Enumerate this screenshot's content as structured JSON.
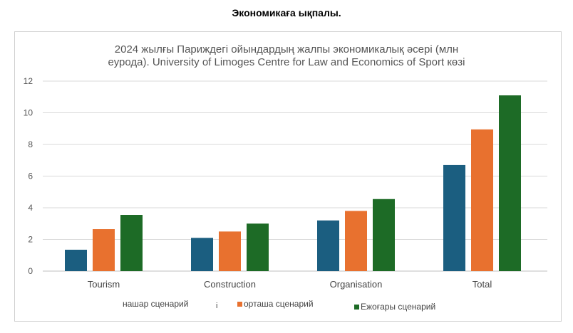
{
  "page": {
    "heading": "Экономикаға ықпалы."
  },
  "chart_data": {
    "type": "bar",
    "title_line1": "2024 жылғы Париждегі ойындардың жалпы экономикалық әсері (млн",
    "title_line2": "еурода). University of Limoges Centre for Law and Economics of Sport көзі",
    "categories": [
      "Tourism",
      "Construction",
      "Organisation",
      "Total"
    ],
    "series": [
      {
        "name": "нашар сценарий",
        "color": "#1b5e80",
        "values": [
          1.35,
          2.1,
          3.2,
          6.7
        ]
      },
      {
        "name": "орташа сценарий",
        "color": "#e8712f",
        "values": [
          2.65,
          2.5,
          3.8,
          8.95
        ]
      },
      {
        "name": "Ежоғары сценарий",
        "color": "#1d6b26",
        "values": [
          3.55,
          3.0,
          4.55,
          11.1
        ]
      }
    ],
    "ylim": [
      0,
      12
    ],
    "yticks": [
      0,
      2,
      4,
      6,
      8,
      10,
      12
    ],
    "grid": true,
    "legend_position": "bottom",
    "legend_marker": "і"
  }
}
